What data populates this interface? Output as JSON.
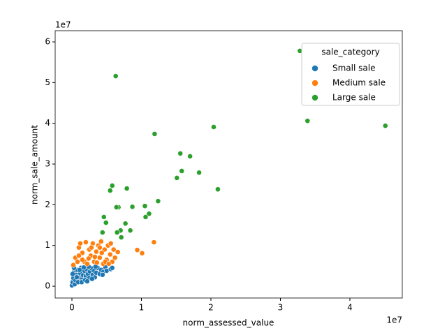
{
  "chart_data": {
    "type": "scatter",
    "x_label": "norm_assessed_value",
    "y_label": "norm_sale_amount",
    "x_offset": "1e7",
    "y_offset": "1e7",
    "legend_title": "sale_category",
    "legend_position": "upper right",
    "xlim": [
      -0.241,
      4.754
    ],
    "ylim": [
      -0.29,
      6.275
    ],
    "xticks": [
      0,
      1,
      2,
      3,
      4
    ],
    "yticks": [
      0,
      1,
      2,
      3,
      4,
      5,
      6
    ],
    "series": [
      {
        "name": "Small sale",
        "color": "#1f77b4",
        "x": [
          0.0,
          0.01,
          0.02,
          0.03,
          0.04,
          0.05,
          0.06,
          0.08,
          0.09,
          0.1,
          0.12,
          0.13,
          0.15,
          0.16,
          0.18,
          0.2,
          0.21,
          0.23,
          0.25,
          0.26,
          0.28,
          0.3,
          0.32,
          0.33,
          0.35,
          0.37,
          0.4,
          0.42,
          0.45,
          0.48,
          0.5,
          0.56,
          0.58,
          0.14,
          0.07,
          0.11,
          0.19,
          0.24,
          0.29,
          0.01,
          0.03,
          0.34,
          0.44,
          0.17,
          0.22
        ],
        "y": [
          0.02,
          0.1,
          0.2,
          0.35,
          0.05,
          0.15,
          0.28,
          0.4,
          0.1,
          0.22,
          0.32,
          0.45,
          0.18,
          0.27,
          0.38,
          0.25,
          0.42,
          0.3,
          0.2,
          0.36,
          0.44,
          0.28,
          0.38,
          0.22,
          0.33,
          0.45,
          0.3,
          0.4,
          0.35,
          0.47,
          0.38,
          0.42,
          0.45,
          0.1,
          0.22,
          0.4,
          0.15,
          0.48,
          0.18,
          0.3,
          0.45,
          0.48,
          0.28,
          0.46,
          0.12
        ]
      },
      {
        "name": "Medium sale",
        "color": "#ff7f0e",
        "x": [
          0.02,
          0.05,
          0.1,
          0.12,
          0.15,
          0.18,
          0.2,
          0.25,
          0.27,
          0.3,
          0.32,
          0.35,
          0.38,
          0.4,
          0.42,
          0.45,
          0.47,
          0.5,
          0.52,
          0.55,
          0.58,
          0.6,
          0.62,
          0.08,
          0.22,
          0.28,
          0.33,
          0.43,
          0.48,
          0.36,
          0.15,
          0.56,
          0.66,
          0.94,
          1.01,
          1.18,
          0.1,
          0.24,
          0.4,
          0.53
        ],
        "y": [
          0.52,
          0.7,
          0.95,
          1.05,
          0.82,
          0.6,
          1.08,
          0.9,
          0.75,
          1.05,
          0.6,
          0.85,
          1.0,
          0.7,
          1.1,
          0.55,
          0.9,
          0.65,
          1.0,
          0.78,
          0.6,
          0.9,
          0.7,
          0.6,
          0.55,
          0.95,
          0.72,
          0.82,
          0.6,
          0.58,
          0.65,
          1.05,
          0.84,
          0.89,
          0.81,
          1.08,
          0.75,
          0.68,
          0.95,
          0.55
        ]
      },
      {
        "name": "Large sale",
        "color": "#2ca02c",
        "x": [
          0.63,
          1.19,
          2.04,
          3.28,
          3.39,
          4.51,
          1.56,
          1.7,
          1.58,
          1.83,
          1.51,
          2.1,
          0.58,
          0.55,
          0.79,
          0.67,
          0.64,
          1.05,
          0.87,
          1.24,
          1.11,
          1.06,
          0.46,
          0.49,
          0.77,
          0.84,
          0.7,
          0.65,
          0.71,
          0.44
        ],
        "y": [
          5.16,
          3.74,
          3.91,
          5.78,
          4.06,
          3.94,
          3.26,
          3.19,
          2.83,
          2.79,
          2.66,
          2.38,
          2.47,
          2.35,
          2.4,
          1.94,
          1.94,
          1.97,
          1.95,
          2.09,
          1.78,
          1.7,
          1.7,
          1.56,
          1.54,
          1.37,
          1.37,
          1.32,
          1.2,
          1.32
        ]
      }
    ]
  }
}
